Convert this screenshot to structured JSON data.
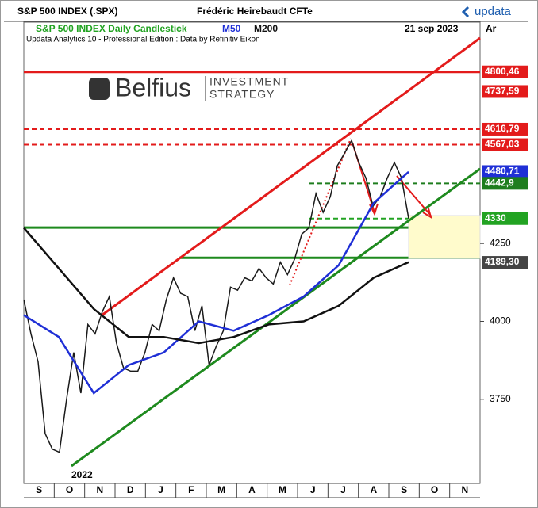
{
  "chart_data": {
    "type": "line",
    "title": "S&P 500 INDEX (.SPX)",
    "author": "Frédéric Heirebaudt CFTe",
    "brand": "updata",
    "subtitle": "S&P 500 INDEX Daily Candlestick",
    "date": "21 sep 2023",
    "axis_corner": "Ar",
    "source": "Updata Analytics 10 - Professional Edition : Data by Refinitiv Eikon",
    "logo": {
      "name": "Belfius",
      "tagline": [
        "INVESTMENT",
        "STRATEGY"
      ]
    },
    "months": [
      "S",
      "O",
      "N",
      "D",
      "J",
      "F",
      "M",
      "A",
      "M",
      "J",
      "J",
      "A",
      "S",
      "O",
      "N"
    ],
    "year": "2022",
    "ylim": [
      3480,
      4960
    ],
    "yticks": [
      3750,
      4000,
      4250
    ],
    "series": [
      {
        "name": "S&P 500 INDEX Daily Candlestick",
        "color": "#1a1a1a",
        "values": [
          4070,
          3960,
          3870,
          3640,
          3590,
          3580,
          3750,
          3900,
          3770,
          3990,
          3960,
          4030,
          4080,
          3930,
          3850,
          3840,
          3840,
          3900,
          3990,
          3970,
          4070,
          4140,
          4090,
          4080,
          3970,
          4050,
          3860,
          3920,
          3970,
          4110,
          4100,
          4140,
          4130,
          4170,
          4140,
          4120,
          4190,
          4150,
          4200,
          4280,
          4300,
          4410,
          4350,
          4400,
          4500,
          4540,
          4580,
          4510,
          4460,
          4370,
          4400,
          4460,
          4510,
          4460,
          4330
        ]
      },
      {
        "name": "M50",
        "color": "#1f2fd6",
        "values": [
          4020,
          3950,
          3770,
          3860,
          3900,
          4000,
          3970,
          4020,
          4080,
          4180,
          4380,
          4480
        ]
      },
      {
        "name": "M200",
        "color": "#111111",
        "values": [
          4300,
          4170,
          4040,
          3950,
          3950,
          3930,
          3950,
          3990,
          4000,
          4050,
          4140,
          4190
        ]
      }
    ],
    "levels": [
      {
        "value": 4800.46,
        "label": "4800,46",
        "color": "#e31b1b",
        "style": "solid"
      },
      {
        "value": 4737.59,
        "label": "4737,59",
        "color": "#e31b1b",
        "style": "none"
      },
      {
        "value": 4616.79,
        "label": "4616,79",
        "color": "#e31b1b",
        "style": "dashed"
      },
      {
        "value": 4567.03,
        "label": "4567,03",
        "color": "#e31b1b",
        "style": "dashed"
      },
      {
        "value": 4480.71,
        "label": "4480,71",
        "color": "#1f2fd6",
        "style": "none"
      },
      {
        "value": 4442.9,
        "label": "4442,9",
        "color": "#1e7d1e",
        "style": "dashed"
      },
      {
        "value": 4330,
        "label": "4330",
        "color": "#22a322",
        "style": "dashed"
      },
      {
        "value": 4189.3,
        "label": "4189,30",
        "color": "#444444",
        "style": "none"
      },
      {
        "value": 4301,
        "color": "#1e8a1e",
        "style": "solid"
      },
      {
        "value": 4204,
        "color": "#1e8a1e",
        "style": "solid"
      }
    ]
  }
}
